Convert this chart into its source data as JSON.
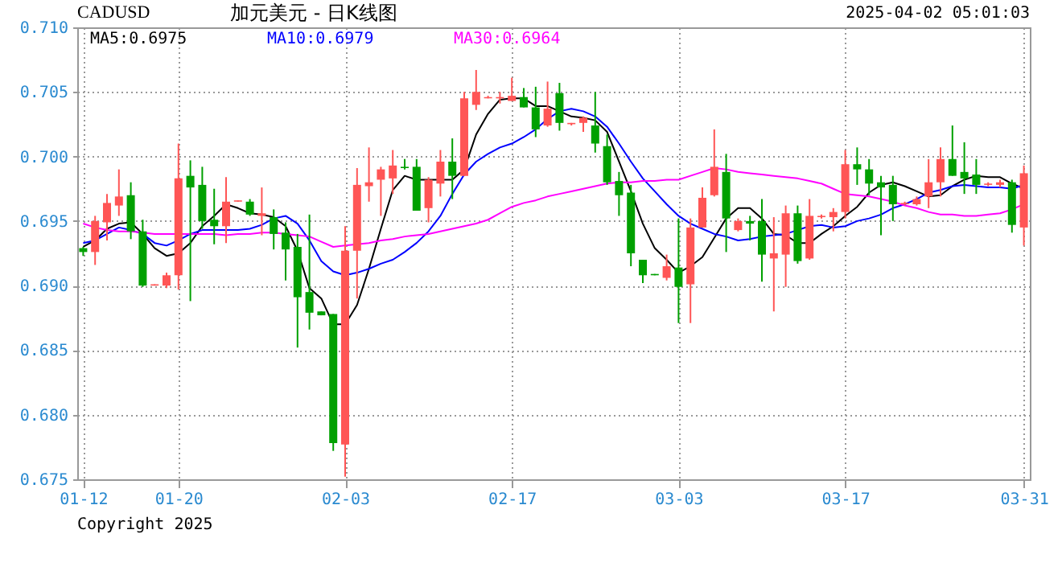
{
  "chart_data": {
    "type": "candlestick",
    "title": "加元美元 - 日K线图",
    "subtitle": "CADUSD",
    "annotations": [
      "2025-04-02 05:01:03",
      "Copyright 2025"
    ],
    "categories": [
      "01-12",
      null,
      null,
      null,
      null,
      null,
      null,
      null,
      "01-20",
      null,
      null,
      null,
      null,
      null,
      null,
      null,
      null,
      null,
      null,
      null,
      null,
      null,
      "02-03",
      null,
      null,
      null,
      null,
      null,
      null,
      null,
      null,
      null,
      null,
      null,
      null,
      null,
      "02-17",
      null,
      null,
      null,
      null,
      null,
      null,
      null,
      null,
      null,
      null,
      null,
      null,
      null,
      "03-03",
      null,
      null,
      null,
      null,
      null,
      null,
      null,
      null,
      null,
      null,
      null,
      null,
      null,
      "03-17",
      null,
      null,
      null,
      null,
      null,
      null,
      null,
      null,
      null,
      null,
      null,
      null,
      null,
      null,
      "03-31"
    ],
    "ohlc": [
      [
        0.6929,
        0.693,
        0.6923,
        0.6926
      ],
      [
        0.6926,
        0.6954,
        0.6916,
        0.695
      ],
      [
        0.6949,
        0.6971,
        0.6935,
        0.6964
      ],
      [
        0.6962,
        0.699,
        0.6954,
        0.6969
      ],
      [
        0.697,
        0.698,
        0.6936,
        0.6942
      ],
      [
        0.6942,
        0.6951,
        0.6899,
        0.69
      ],
      [
        0.69,
        0.6901,
        0.69,
        0.6901
      ],
      [
        0.69,
        0.691,
        0.6898,
        0.6908
      ],
      [
        0.6908,
        0.701,
        0.6897,
        0.6983
      ],
      [
        0.6985,
        0.6997,
        0.6888,
        0.6976
      ],
      [
        0.6978,
        0.6992,
        0.6944,
        0.695
      ],
      [
        0.6951,
        0.6975,
        0.6932,
        0.6946
      ],
      [
        0.6946,
        0.6984,
        0.6933,
        0.6965
      ],
      [
        0.6965,
        0.6966,
        0.6965,
        0.6966
      ],
      [
        0.6965,
        0.6967,
        0.6954,
        0.6955
      ],
      [
        0.6954,
        0.6976,
        0.6939,
        0.6956
      ],
      [
        0.6953,
        0.6959,
        0.6928,
        0.694
      ],
      [
        0.6941,
        0.6949,
        0.6904,
        0.6928
      ],
      [
        0.693,
        0.694,
        0.6852,
        0.6891
      ],
      [
        0.6895,
        0.6955,
        0.6866,
        0.6879
      ],
      [
        0.688,
        0.688,
        0.6877,
        0.6877
      ],
      [
        0.6878,
        0.6878,
        0.6772,
        0.6778
      ],
      [
        0.6777,
        0.6946,
        0.6752,
        0.6927
      ],
      [
        0.6927,
        0.6991,
        0.689,
        0.6978
      ],
      [
        0.6977,
        0.7007,
        0.6965,
        0.698
      ],
      [
        0.6982,
        0.6992,
        0.6954,
        0.699
      ],
      [
        0.6983,
        0.7005,
        0.6971,
        0.6993
      ],
      [
        0.6992,
        0.6998,
        0.699,
        0.6991
      ],
      [
        0.6992,
        0.6998,
        0.6958,
        0.6958
      ],
      [
        0.696,
        0.6984,
        0.6949,
        0.6982
      ],
      [
        0.6979,
        0.7005,
        0.6969,
        0.6996
      ],
      [
        0.6996,
        0.7014,
        0.6967,
        0.6985
      ],
      [
        0.6985,
        0.705,
        0.6985,
        0.7045
      ],
      [
        0.704,
        0.7067,
        0.7036,
        0.705
      ],
      [
        0.7045,
        0.7047,
        0.7045,
        0.7046
      ],
      [
        0.7045,
        0.705,
        0.7041,
        0.7046
      ],
      [
        0.7043,
        0.7061,
        0.7043,
        0.7047
      ],
      [
        0.7046,
        0.7053,
        0.7038,
        0.7038
      ],
      [
        0.7038,
        0.7054,
        0.7015,
        0.7021
      ],
      [
        0.7024,
        0.7058,
        0.7023,
        0.7037
      ],
      [
        0.7049,
        0.7057,
        0.702,
        0.7026
      ],
      [
        0.7025,
        0.7026,
        0.7024,
        0.7026
      ],
      [
        0.7026,
        0.7031,
        0.7019,
        0.703
      ],
      [
        0.7024,
        0.705,
        0.7003,
        0.701
      ],
      [
        0.7008,
        0.7017,
        0.6978,
        0.698
      ],
      [
        0.6981,
        0.6988,
        0.6954,
        0.697
      ],
      [
        0.6972,
        0.6978,
        0.6915,
        0.6925
      ],
      [
        0.692,
        0.692,
        0.6902,
        0.6908
      ],
      [
        0.6909,
        0.6909,
        0.6908,
        0.6908
      ],
      [
        0.6906,
        0.6924,
        0.6904,
        0.6915
      ],
      [
        0.6914,
        0.6952,
        0.6871,
        0.6899
      ],
      [
        0.6901,
        0.6952,
        0.6871,
        0.6945
      ],
      [
        0.6945,
        0.6976,
        0.6945,
        0.6968
      ],
      [
        0.697,
        0.7021,
        0.6969,
        0.6992
      ],
      [
        0.6988,
        0.7002,
        0.6926,
        0.6952
      ],
      [
        0.6943,
        0.6952,
        0.6942,
        0.695
      ],
      [
        0.695,
        0.6954,
        0.6935,
        0.6948
      ],
      [
        0.695,
        0.6967,
        0.6903,
        0.6924
      ],
      [
        0.6921,
        0.6953,
        0.688,
        0.6925
      ],
      [
        0.6924,
        0.6962,
        0.6899,
        0.6956
      ],
      [
        0.6956,
        0.6962,
        0.6917,
        0.6919
      ],
      [
        0.6921,
        0.6967,
        0.692,
        0.6954
      ],
      [
        0.6953,
        0.6955,
        0.6952,
        0.6954
      ],
      [
        0.6953,
        0.696,
        0.6942,
        0.6957
      ],
      [
        0.6957,
        0.7005,
        0.6952,
        0.6994
      ],
      [
        0.6994,
        0.7007,
        0.6978,
        0.699
      ],
      [
        0.699,
        0.6998,
        0.697,
        0.6979
      ],
      [
        0.698,
        0.6985,
        0.6939,
        0.6976
      ],
      [
        0.6978,
        0.6985,
        0.695,
        0.6963
      ],
      [
        0.6963,
        0.6965,
        0.6962,
        0.6964
      ],
      [
        0.6963,
        0.6969,
        0.6962,
        0.6967
      ],
      [
        0.6969,
        0.6998,
        0.696,
        0.698
      ],
      [
        0.698,
        0.7007,
        0.6969,
        0.6998
      ],
      [
        0.6998,
        0.7024,
        0.6985,
        0.6985
      ],
      [
        0.6988,
        0.7011,
        0.6971,
        0.6983
      ],
      [
        0.6986,
        0.6998,
        0.6971,
        0.6978
      ],
      [
        0.6978,
        0.698,
        0.6977,
        0.6979
      ],
      [
        0.6978,
        0.6982,
        0.6976,
        0.698
      ],
      [
        0.698,
        0.6982,
        0.6941,
        0.6947
      ],
      [
        0.6945,
        0.6993,
        0.6931,
        0.6987
      ]
    ],
    "colors": [
      "#00a000",
      "#ff5555",
      "#ff5555",
      "#ff5555",
      "#00a000",
      "#00a000",
      "#ff5555",
      "#ff5555",
      "#ff5555",
      "#00a000",
      "#00a000",
      "#00a000",
      "#ff5555",
      "#ff5555",
      "#00a000",
      "#ff5555",
      "#00a000",
      "#00a000",
      "#00a000",
      "#00a000",
      "#00a000",
      "#00a000",
      "#ff5555",
      "#ff5555",
      "#ff5555",
      "#ff5555",
      "#ff5555",
      "#00a000",
      "#00a000",
      "#ff5555",
      "#ff5555",
      "#00a000",
      "#ff5555",
      "#ff5555",
      "#ff5555",
      "#ff5555",
      "#ff5555",
      "#00a000",
      "#00a000",
      "#ff5555",
      "#00a000",
      "#ff5555",
      "#ff5555",
      "#00a000",
      "#00a000",
      "#00a000",
      "#00a000",
      "#00a000",
      "#00a000",
      "#ff5555",
      "#00a000",
      "#ff5555",
      "#ff5555",
      "#ff5555",
      "#00a000",
      "#ff5555",
      "#00a000",
      "#00a000",
      "#ff5555",
      "#ff5555",
      "#00a000",
      "#ff5555",
      "#ff5555",
      "#ff5555",
      "#ff5555",
      "#00a000",
      "#00a000",
      "#00a000",
      "#00a000",
      "#ff5555",
      "#ff5555",
      "#ff5555",
      "#ff5555",
      "#00a000",
      "#00a000",
      "#00a000",
      "#ff5555",
      "#ff5555",
      "#00a000",
      "#ff5555"
    ],
    "series": [
      {
        "name": "MA5:0.6975",
        "type": "line",
        "color": "#000000",
        "values": [
          0.693,
          0.6935,
          0.6944,
          0.6948,
          0.6949,
          0.694,
          0.6929,
          0.6923,
          0.6925,
          0.6933,
          0.6946,
          0.6954,
          0.6963,
          0.696,
          0.6956,
          0.6955,
          0.6953,
          0.6946,
          0.6927,
          0.6898,
          0.689,
          0.687,
          0.687,
          0.6885,
          0.6913,
          0.6944,
          0.6974,
          0.6985,
          0.6982,
          0.6982,
          0.6982,
          0.6982,
          0.699,
          0.7017,
          0.7033,
          0.7044,
          0.7045,
          0.7045,
          0.7039,
          0.7039,
          0.7035,
          0.7031,
          0.703,
          0.7028,
          0.7019,
          0.6996,
          0.6973,
          0.6948,
          0.6929,
          0.692,
          0.691,
          0.6915,
          0.6922,
          0.6937,
          0.6952,
          0.696,
          0.696,
          0.6952,
          0.694,
          0.6939,
          0.6933,
          0.6933,
          0.694,
          0.6946,
          0.6954,
          0.6961,
          0.6972,
          0.6978,
          0.698,
          0.6977,
          0.6973,
          0.6969,
          0.697,
          0.6977,
          0.6982,
          0.6985,
          0.6984,
          0.6984,
          0.6979,
          0.6975
        ]
      },
      {
        "name": "MA10:0.6979",
        "type": "line",
        "color": "#0000ff",
        "values": [
          0.6933,
          0.6935,
          0.694,
          0.6945,
          0.6943,
          0.694,
          0.6933,
          0.6931,
          0.6935,
          0.694,
          0.6943,
          0.6943,
          0.6943,
          0.6943,
          0.6944,
          0.6947,
          0.6952,
          0.6954,
          0.6948,
          0.6935,
          0.6919,
          0.6911,
          0.6908,
          0.691,
          0.6913,
          0.6917,
          0.692,
          0.6926,
          0.6933,
          0.6942,
          0.6954,
          0.6971,
          0.6986,
          0.6996,
          0.7002,
          0.7007,
          0.701,
          0.7015,
          0.7021,
          0.7029,
          0.7035,
          0.7037,
          0.7035,
          0.7031,
          0.7023,
          0.701,
          0.6996,
          0.6983,
          0.6973,
          0.6963,
          0.6954,
          0.6948,
          0.6944,
          0.694,
          0.6938,
          0.6935,
          0.6936,
          0.6938,
          0.6939,
          0.694,
          0.6943,
          0.6946,
          0.6947,
          0.6945,
          0.6946,
          0.695,
          0.6952,
          0.6955,
          0.696,
          0.6963,
          0.6967,
          0.6972,
          0.6974,
          0.6977,
          0.6978,
          0.6977,
          0.6976,
          0.6976,
          0.6975,
          0.6978
        ]
      },
      {
        "name": "MA30:0.6964",
        "type": "line",
        "color": "#ff00ff",
        "values": [
          0.6948,
          0.6945,
          0.6943,
          0.6942,
          0.6942,
          0.6941,
          0.694,
          0.694,
          0.694,
          0.694,
          0.694,
          0.694,
          0.6939,
          0.694,
          0.694,
          0.6941,
          0.6941,
          0.694,
          0.6939,
          0.6938,
          0.6934,
          0.693,
          0.6931,
          0.6932,
          0.6933,
          0.6935,
          0.6936,
          0.6938,
          0.6939,
          0.694,
          0.6942,
          0.6944,
          0.6946,
          0.6948,
          0.6951,
          0.6956,
          0.6961,
          0.6964,
          0.6966,
          0.6969,
          0.6971,
          0.6973,
          0.6975,
          0.6977,
          0.6979,
          0.698,
          0.698,
          0.6981,
          0.6981,
          0.6982,
          0.6982,
          0.6985,
          0.6988,
          0.6991,
          0.699,
          0.6988,
          0.6987,
          0.6986,
          0.6985,
          0.6984,
          0.6983,
          0.6981,
          0.6979,
          0.6975,
          0.6971,
          0.697,
          0.6969,
          0.6967,
          0.6965,
          0.6962,
          0.696,
          0.6957,
          0.6955,
          0.6955,
          0.6954,
          0.6954,
          0.6955,
          0.6956,
          0.6959,
          0.6963
        ]
      }
    ],
    "ylim": [
      0.675,
      0.71
    ],
    "yticks": [
      {
        "value": 0.675,
        "label": "0.675"
      },
      {
        "value": 0.68,
        "label": "0.680"
      },
      {
        "value": 0.685,
        "label": "0.685"
      },
      {
        "value": 0.69,
        "label": "0.690"
      },
      {
        "value": 0.695,
        "label": "0.695"
      },
      {
        "value": 0.7,
        "label": "0.700"
      },
      {
        "value": 0.705,
        "label": "0.705"
      },
      {
        "value": 0.71,
        "label": "0.710"
      }
    ],
    "grid": true,
    "legend": "top left"
  }
}
